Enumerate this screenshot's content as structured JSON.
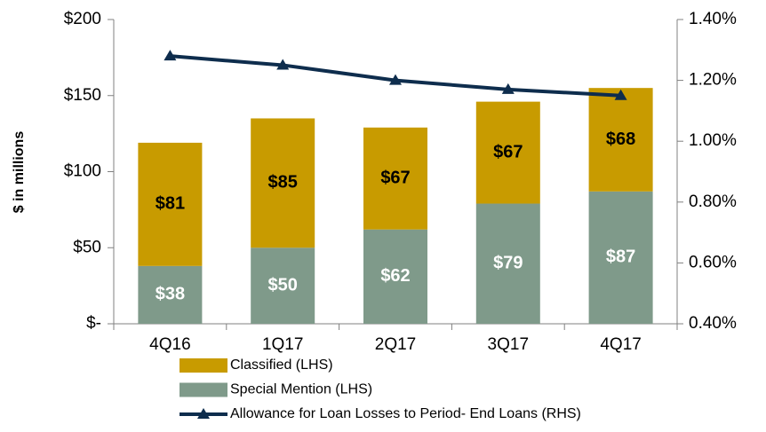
{
  "chart_data": {
    "type": "bar",
    "stacked": true,
    "y_label": "$ in millions",
    "categories": [
      "4Q16",
      "1Q17",
      "2Q17",
      "3Q17",
      "4Q17"
    ],
    "series": [
      {
        "name": "Special Mention (LHS)",
        "color": "#7f9a8a",
        "values": [
          38,
          50,
          62,
          79,
          87
        ],
        "value_labels": [
          "$38",
          "$50",
          "$62",
          "$79",
          "$87"
        ],
        "label_color": "#ffffff"
      },
      {
        "name": "Classified (LHS)",
        "color": "#c89b00",
        "values": [
          81,
          85,
          67,
          67,
          68
        ],
        "value_labels": [
          "$81",
          "$85",
          "$67",
          "$67",
          "$68"
        ],
        "label_color": "#000000"
      },
      {
        "name": "Allowance for Loan Losses to Period- End Loans (RHS)",
        "type": "line",
        "axis": "y2",
        "color": "#0e2d4d",
        "values": [
          1.28,
          1.25,
          1.2,
          1.17,
          1.15
        ]
      }
    ],
    "legend_order": [
      1,
      0,
      2
    ],
    "ylim": [
      0,
      200
    ],
    "yticks": [
      {
        "value": 0,
        "label": "$-"
      },
      {
        "value": 50,
        "label": "$50"
      },
      {
        "value": 100,
        "label": "$100"
      },
      {
        "value": 150,
        "label": "$150"
      },
      {
        "value": 200,
        "label": "$200"
      }
    ],
    "y2lim": [
      0.4,
      1.4
    ],
    "y2ticks": [
      {
        "value": 0.4,
        "label": "0.40%"
      },
      {
        "value": 0.6,
        "label": "0.60%"
      },
      {
        "value": 0.8,
        "label": "0.80%"
      },
      {
        "value": 1.0,
        "label": "1.00%"
      },
      {
        "value": 1.2,
        "label": "1.20%"
      },
      {
        "value": 1.4,
        "label": "1.40%"
      }
    ]
  }
}
